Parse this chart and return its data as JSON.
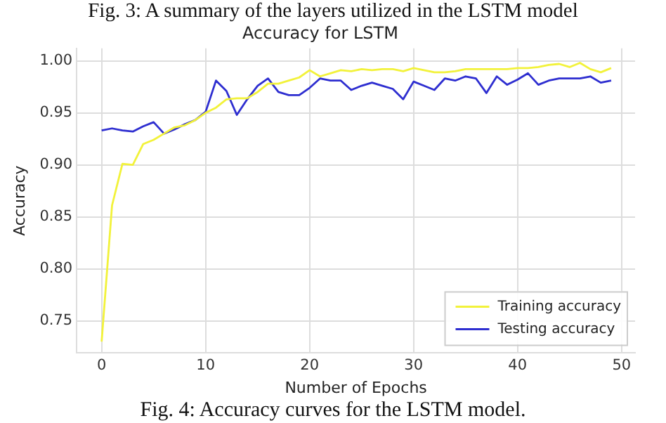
{
  "chart_data": {
    "type": "line",
    "title": "Accuracy for LSTM",
    "xlabel": "Number of Epochs",
    "ylabel": "Accuracy",
    "x": [
      0,
      1,
      2,
      3,
      4,
      5,
      6,
      7,
      8,
      9,
      10,
      11,
      12,
      13,
      14,
      15,
      16,
      17,
      18,
      19,
      20,
      21,
      22,
      23,
      24,
      25,
      26,
      27,
      28,
      29,
      30,
      31,
      32,
      33,
      34,
      35,
      36,
      37,
      38,
      39,
      40,
      41,
      42,
      43,
      44,
      45,
      46,
      47,
      48,
      49
    ],
    "series": [
      {
        "name": "Training accuracy",
        "color": "#f2f23a",
        "values": [
          0.73,
          0.861,
          0.901,
          0.9,
          0.92,
          0.924,
          0.93,
          0.936,
          0.938,
          0.943,
          0.95,
          0.955,
          0.963,
          0.964,
          0.964,
          0.97,
          0.978,
          0.978,
          0.981,
          0.984,
          0.991,
          0.985,
          0.988,
          0.991,
          0.99,
          0.992,
          0.991,
          0.992,
          0.992,
          0.99,
          0.993,
          0.991,
          0.989,
          0.989,
          0.99,
          0.992,
          0.992,
          0.992,
          0.992,
          0.992,
          0.993,
          0.993,
          0.994,
          0.996,
          0.997,
          0.994,
          0.998,
          0.992,
          0.989,
          0.993
        ]
      },
      {
        "name": "Testing accuracy",
        "color": "#2e2ed0",
        "values": [
          0.933,
          0.935,
          0.933,
          0.932,
          0.937,
          0.941,
          0.93,
          0.934,
          0.939,
          0.943,
          0.951,
          0.981,
          0.971,
          0.948,
          0.963,
          0.976,
          0.983,
          0.97,
          0.967,
          0.967,
          0.974,
          0.983,
          0.981,
          0.981,
          0.972,
          0.976,
          0.979,
          0.976,
          0.973,
          0.963,
          0.98,
          0.976,
          0.972,
          0.983,
          0.981,
          0.985,
          0.983,
          0.969,
          0.985,
          0.977,
          0.982,
          0.988,
          0.977,
          0.981,
          0.983,
          0.983,
          0.983,
          0.985,
          0.979,
          0.981
        ]
      }
    ],
    "xlim": [
      -2.4,
      51.3
    ],
    "xticks": [
      0,
      10,
      20,
      30,
      40,
      50
    ],
    "ylim": [
      0.719,
      1.012
    ],
    "yticks": [
      {
        "value": 0.75,
        "label": "0.75"
      },
      {
        "value": 0.8,
        "label": "0.80"
      },
      {
        "value": 0.85,
        "label": "0.85"
      },
      {
        "value": 0.9,
        "label": "0.90"
      },
      {
        "value": 0.95,
        "label": "0.95"
      },
      {
        "value": 1.0,
        "label": "1.00"
      }
    ],
    "grid": true,
    "legend": "bottom right",
    "marker": "none",
    "line_style": "solid",
    "annotations": [
      "Fig. 3: A summary of the layers utilized in the LSTM model",
      "Fig. 4: Accuracy curves for the LSTM model."
    ]
  }
}
